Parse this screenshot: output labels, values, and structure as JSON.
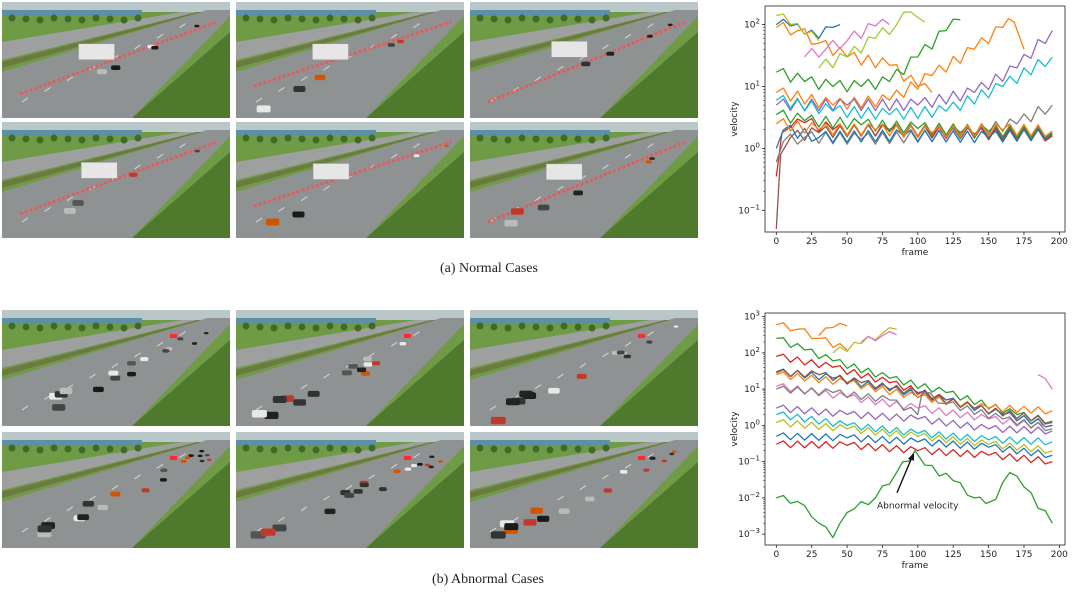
{
  "figure": {
    "caption_a": "(a)  Normal Cases",
    "caption_b": "(b)  Abnormal Cases"
  },
  "colors": {
    "grass_light": "#6f9a46",
    "grass_dark": "#4f7a2e",
    "road": "#8f9293",
    "trajectory": "#ff4a4a",
    "water": "#5d8fa6"
  },
  "chart_data": [
    {
      "type": "line",
      "yscale": "log",
      "title": "",
      "xlabel": "frame",
      "ylabel": "velocity",
      "xlim": [
        -8,
        204
      ],
      "ylim_exp": [
        -1.35,
        2.3
      ],
      "xticks": [
        0,
        25,
        50,
        75,
        100,
        125,
        150,
        175,
        200
      ],
      "yticks": [
        {
          "exp": -1,
          "base": "10",
          "sup": "−1"
        },
        {
          "exp": 0,
          "base": "10",
          "sup": "0"
        },
        {
          "exp": 1,
          "base": "10",
          "sup": "1"
        },
        {
          "exp": 2,
          "base": "10",
          "sup": "2"
        }
      ],
      "series": [
        {
          "name": "s1",
          "color": "#1f77b4",
          "points": [
            [
              0,
              100
            ],
            [
              10,
              95
            ],
            [
              20,
              70
            ],
            [
              30,
              60
            ],
            [
              40,
              90
            ],
            [
              45,
              100
            ]
          ]
        },
        {
          "name": "s2",
          "color": "#ff7f0e",
          "points": [
            [
              0,
              90
            ],
            [
              15,
              80
            ],
            [
              30,
              50
            ],
            [
              50,
              30
            ],
            [
              80,
              22
            ],
            [
              100,
              10
            ],
            [
              110,
              8
            ]
          ]
        },
        {
          "name": "s3",
          "color": "#bcbd22",
          "points": [
            [
              0,
              140
            ],
            [
              10,
              100
            ],
            [
              20,
              70
            ],
            [
              30,
              55
            ]
          ]
        },
        {
          "name": "s4",
          "color": "#e377c2",
          "points": [
            [
              20,
              30
            ],
            [
              35,
              40
            ],
            [
              50,
              55
            ],
            [
              70,
              95
            ],
            [
              80,
              100
            ]
          ]
        },
        {
          "name": "s5",
          "color": "#9acd32",
          "points": [
            [
              30,
              20
            ],
            [
              50,
              30
            ],
            [
              70,
              60
            ],
            [
              85,
              100
            ],
            [
              95,
              160
            ],
            [
              100,
              130
            ],
            [
              105,
              110
            ]
          ]
        },
        {
          "name": "s6",
          "color": "#2ca02c",
          "points": [
            [
              0,
              17
            ],
            [
              20,
              12
            ],
            [
              40,
              10
            ],
            [
              60,
              10
            ],
            [
              80,
              12
            ],
            [
              100,
              30
            ],
            [
              120,
              80
            ],
            [
              130,
              120
            ]
          ]
        },
        {
          "name": "s7",
          "color": "#ff7f0e",
          "points": [
            [
              0,
              8
            ],
            [
              40,
              5
            ],
            [
              80,
              6
            ],
            [
              110,
              15
            ],
            [
              140,
              40
            ],
            [
              160,
              90
            ],
            [
              168,
              110
            ],
            [
              175,
              40
            ]
          ]
        },
        {
          "name": "s8",
          "color": "#9467bd",
          "points": [
            [
              0,
              5
            ],
            [
              50,
              5
            ],
            [
              100,
              5
            ],
            [
              140,
              8
            ],
            [
              170,
              20
            ],
            [
              195,
              80
            ]
          ]
        },
        {
          "name": "s9",
          "color": "#17becf",
          "points": [
            [
              0,
              6
            ],
            [
              40,
              4
            ],
            [
              80,
              3.5
            ],
            [
              120,
              4
            ],
            [
              160,
              10
            ],
            [
              195,
              30
            ]
          ]
        },
        {
          "name": "s10",
          "color": "#d62728",
          "points": [
            [
              0,
              0.35
            ],
            [
              4,
              1.8
            ],
            [
              10,
              2.2
            ],
            [
              20,
              2.6
            ],
            [
              40,
              2
            ],
            [
              80,
              1.9
            ],
            [
              140,
              1.7
            ],
            [
              195,
              1.6
            ]
          ]
        },
        {
          "name": "s11",
          "color": "#8c564b",
          "points": [
            [
              0,
              0.05
            ],
            [
              3,
              0.8
            ],
            [
              10,
              1.5
            ],
            [
              30,
              1.8
            ],
            [
              80,
              2
            ],
            [
              130,
              1.8
            ],
            [
              195,
              1.7
            ]
          ]
        },
        {
          "name": "s12",
          "color": "#7f7f7f",
          "points": [
            [
              0,
              0.6
            ],
            [
              5,
              1.3
            ],
            [
              20,
              1.5
            ],
            [
              60,
              1.4
            ],
            [
              120,
              1.6
            ],
            [
              170,
              2.5
            ],
            [
              195,
              5
            ]
          ]
        },
        {
          "name": "s13",
          "color": "#2ca02c",
          "points": [
            [
              0,
              3.5
            ],
            [
              20,
              2.8
            ],
            [
              60,
              2.4
            ],
            [
              100,
              2.1
            ],
            [
              150,
              1.9
            ],
            [
              195,
              1.8
            ]
          ]
        },
        {
          "name": "s14",
          "color": "#1f77b4",
          "points": [
            [
              0,
              1
            ],
            [
              5,
              2
            ],
            [
              30,
              1.5
            ],
            [
              90,
              1.6
            ],
            [
              150,
              1.5
            ],
            [
              195,
              1.7
            ]
          ]
        },
        {
          "name": "s15",
          "color": "#ff7f0e",
          "points": [
            [
              0,
              2.5
            ],
            [
              30,
              2
            ],
            [
              70,
              2
            ],
            [
              110,
              1.8
            ],
            [
              160,
              2
            ],
            [
              195,
              1.9
            ]
          ]
        }
      ]
    },
    {
      "type": "line",
      "yscale": "log",
      "title": "",
      "xlabel": "frame",
      "ylabel": "velocity",
      "annotation": "Abnormal velocity",
      "annotation_target": [
        98,
        0.2
      ],
      "xlim": [
        -8,
        204
      ],
      "ylim_exp": [
        -3.3,
        3.1
      ],
      "xticks": [
        0,
        25,
        50,
        75,
        100,
        125,
        150,
        175,
        200
      ],
      "yticks": [
        {
          "exp": -3,
          "base": "10",
          "sup": "−3"
        },
        {
          "exp": -2,
          "base": "10",
          "sup": "−2"
        },
        {
          "exp": -1,
          "base": "10",
          "sup": "−1"
        },
        {
          "exp": 0,
          "base": "10",
          "sup": "0"
        },
        {
          "exp": 1,
          "base": "10",
          "sup": "1"
        },
        {
          "exp": 2,
          "base": "10",
          "sup": "2"
        },
        {
          "exp": 3,
          "base": "10",
          "sup": "3"
        }
      ],
      "series": [
        {
          "name": "a1",
          "color": "#ff7f0e",
          "points": [
            [
              0,
              600
            ],
            [
              15,
              450
            ],
            [
              30,
              250
            ],
            [
              50,
              120
            ]
          ]
        },
        {
          "name": "a2",
          "color": "#ff7f0e",
          "points": [
            [
              30,
              300
            ],
            [
              40,
              500
            ],
            [
              50,
              550
            ]
          ]
        },
        {
          "name": "a3",
          "color": "#bcbd22",
          "points": [
            [
              40,
              100
            ],
            [
              60,
              180
            ],
            [
              75,
              350
            ],
            [
              85,
              450
            ]
          ]
        },
        {
          "name": "a4",
          "color": "#e377c2",
          "points": [
            [
              60,
              200
            ],
            [
              75,
              300
            ],
            [
              85,
              320
            ]
          ]
        },
        {
          "name": "a5",
          "color": "#2ca02c",
          "points": [
            [
              0,
              250
            ],
            [
              20,
              120
            ],
            [
              40,
              60
            ],
            [
              80,
              20
            ],
            [
              120,
              8
            ],
            [
              170,
              2
            ],
            [
              195,
              1.2
            ]
          ]
        },
        {
          "name": "a6",
          "color": "#d62728",
          "points": [
            [
              0,
              80
            ],
            [
              40,
              40
            ],
            [
              80,
              15
            ],
            [
              120,
              5
            ],
            [
              160,
              2
            ],
            [
              195,
              1
            ]
          ]
        },
        {
          "name": "a7",
          "color": "#1f77b4",
          "points": [
            [
              0,
              30
            ],
            [
              40,
              20
            ],
            [
              80,
              10
            ],
            [
              120,
              5
            ],
            [
              160,
              2
            ],
            [
              195,
              1
            ]
          ]
        },
        {
          "name": "a8",
          "color": "#ff7f0e",
          "points": [
            [
              0,
              25
            ],
            [
              50,
              15
            ],
            [
              100,
              6
            ],
            [
              150,
              3
            ],
            [
              195,
              2.5
            ]
          ]
        },
        {
          "name": "a9",
          "color": "#8c564b",
          "points": [
            [
              0,
              28
            ],
            [
              30,
              25
            ],
            [
              60,
              15
            ],
            [
              100,
              8
            ],
            [
              140,
              3
            ],
            [
              195,
              1.3
            ]
          ]
        },
        {
          "name": "a10",
          "color": "#e377c2",
          "points": [
            [
              0,
              12
            ],
            [
              50,
              6
            ],
            [
              100,
              3
            ],
            [
              150,
              1.5
            ],
            [
              190,
              0.9
            ]
          ]
        },
        {
          "name": "a11",
          "color": "#7f7f7f",
          "points": [
            [
              0,
              10
            ],
            [
              40,
              8
            ],
            [
              80,
              5
            ],
            [
              100,
              2
            ],
            [
              103,
              8
            ],
            [
              120,
              4
            ],
            [
              160,
              1.5
            ],
            [
              195,
              0.8
            ]
          ]
        },
        {
          "name": "a12",
          "color": "#9467bd",
          "points": [
            [
              0,
              3
            ],
            [
              50,
              2
            ],
            [
              100,
              1.5
            ],
            [
              150,
              0.8
            ],
            [
              195,
              0.7
            ]
          ]
        },
        {
          "name": "a13",
          "color": "#17becf",
          "points": [
            [
              0,
              2
            ],
            [
              50,
              1
            ],
            [
              100,
              0.6
            ],
            [
              150,
              0.4
            ],
            [
              195,
              0.35
            ]
          ]
        },
        {
          "name": "a14",
          "color": "#bcbd22",
          "points": [
            [
              0,
              1.2
            ],
            [
              50,
              0.8
            ],
            [
              100,
              0.5
            ],
            [
              150,
              0.3
            ],
            [
              195,
              0.2
            ]
          ]
        },
        {
          "name": "a15",
          "color": "#1f77b4",
          "points": [
            [
              0,
              0.5
            ],
            [
              50,
              0.45
            ],
            [
              100,
              0.35
            ],
            [
              150,
              0.25
            ],
            [
              195,
              0.15
            ]
          ]
        },
        {
          "name": "a16",
          "color": "#d62728",
          "points": [
            [
              0,
              0.3
            ],
            [
              50,
              0.28
            ],
            [
              100,
              0.2
            ],
            [
              150,
              0.15
            ],
            [
              195,
              0.1
            ]
          ]
        },
        {
          "name": "a17",
          "color": "#e377c2",
          "points": [
            [
              185,
              25
            ],
            [
              195,
              10
            ]
          ]
        },
        {
          "name": "a18",
          "color": "#2ca02c",
          "points": [
            [
              0,
              0.01
            ],
            [
              15,
              0.008
            ],
            [
              25,
              0.003
            ],
            [
              30,
              0.002
            ],
            [
              40,
              0.0008
            ],
            [
              45,
              0.002
            ],
            [
              55,
              0.005
            ],
            [
              70,
              0.01
            ],
            [
              85,
              0.05
            ],
            [
              98,
              0.2
            ],
            [
              105,
              0.08
            ],
            [
              125,
              0.03
            ],
            [
              140,
              0.01
            ],
            [
              148,
              0.007
            ],
            [
              155,
              0.009
            ],
            [
              165,
              0.05
            ],
            [
              175,
              0.02
            ],
            [
              195,
              0.002
            ]
          ]
        }
      ]
    }
  ]
}
